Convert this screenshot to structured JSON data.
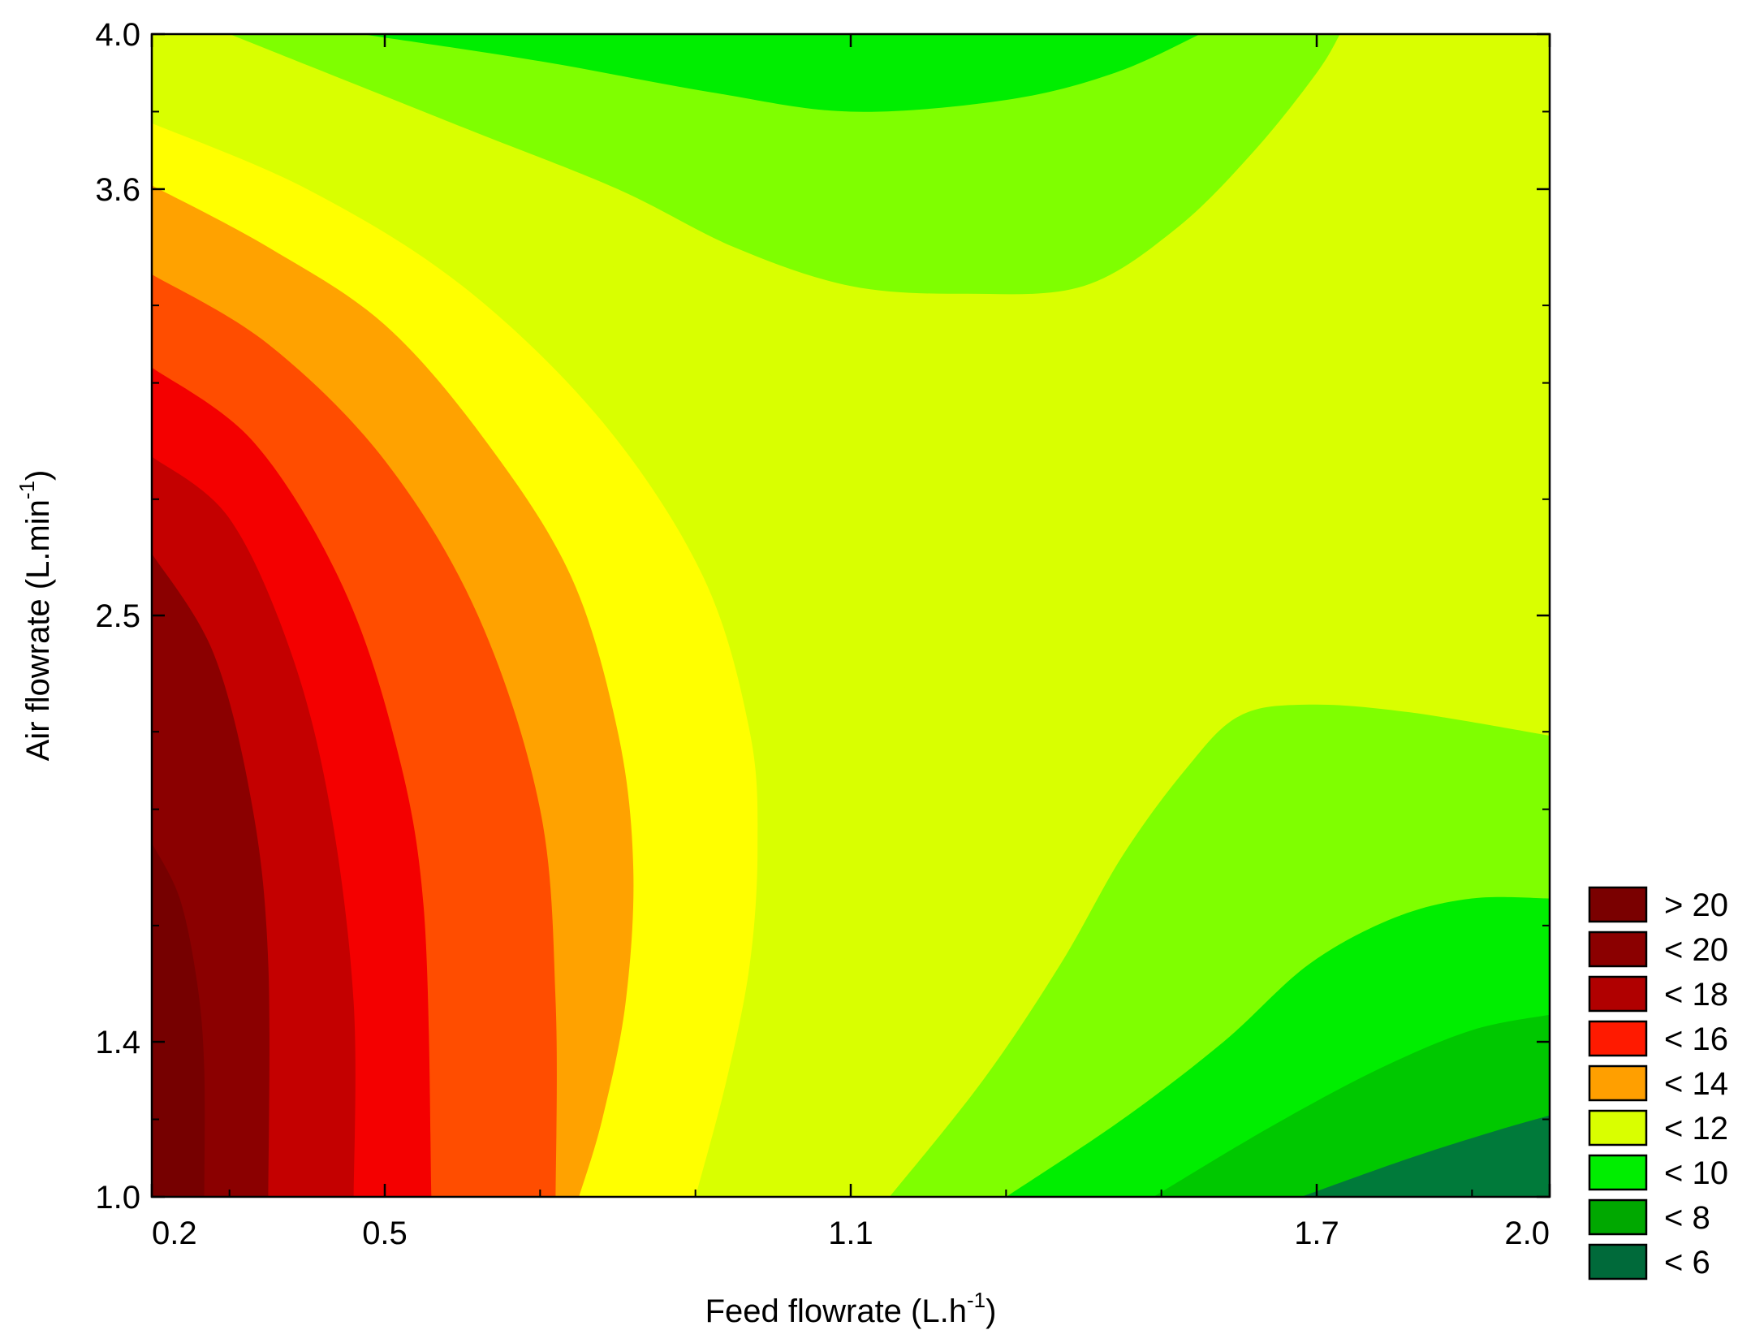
{
  "chart_data": {
    "type": "contour",
    "title": "",
    "xlabel": "Feed flowrate (L.h",
    "xlabel_sup": "-1",
    "xlabel_tail": ")",
    "ylabel": "Air flowrate (L.min",
    "ylabel_sup": "-1",
    "ylabel_tail": ")",
    "xlim": [
      0.2,
      2.0
    ],
    "ylim": [
      1.0,
      4.0
    ],
    "x_ticks": [
      0.2,
      0.5,
      1.1,
      1.7,
      2.0
    ],
    "x_tick_labels": [
      "0.2",
      "0.5",
      "1.1",
      "1.7",
      "2.0"
    ],
    "y_ticks": [
      1.0,
      1.4,
      2.5,
      3.6,
      4.0
    ],
    "y_tick_labels": [
      "1.0",
      "1.4",
      "2.5",
      "3.6",
      "4.0"
    ],
    "legend_position": "bottom-right",
    "levels": [
      {
        "label": "> 20",
        "color": "#7a0000"
      },
      {
        "label": "< 20",
        "color": "#8b0000"
      },
      {
        "label": "< 18",
        "color": "#b00000"
      },
      {
        "label": "< 16",
        "color": "#ff1a00"
      },
      {
        "label": "< 14",
        "color": "#ff9f00"
      },
      {
        "label": "< 12",
        "color": "#d9ff00"
      },
      {
        "label": "< 10",
        "color": "#00ee00"
      },
      {
        "label": "< 8",
        "color": "#00a800"
      },
      {
        "label": "< 6",
        "color": "#006a3a"
      }
    ],
    "region_colors": [
      "#760000",
      "#8b0000",
      "#c40000",
      "#f40000",
      "#ff4d00",
      "#ffa200",
      "#ffff00",
      "#d9ff00",
      "#7fff00",
      "#00ee00",
      "#00c800",
      "#00a400",
      "#007a3a"
    ],
    "contour_lines": [
      {
        "name": "c1",
        "points": [
          [
            0.2,
            2.66
          ],
          [
            0.28,
            2.4
          ],
          [
            0.33,
            2.0
          ],
          [
            0.35,
            1.6
          ],
          [
            0.35,
            1.0
          ]
        ]
      },
      {
        "name": "c2",
        "points": [
          [
            0.2,
            2.91
          ],
          [
            0.3,
            2.75
          ],
          [
            0.38,
            2.4
          ],
          [
            0.43,
            2.0
          ],
          [
            0.46,
            1.5
          ],
          [
            0.46,
            1.0
          ]
        ]
      },
      {
        "name": "c3",
        "points": [
          [
            0.2,
            3.14
          ],
          [
            0.33,
            2.95
          ],
          [
            0.44,
            2.6
          ],
          [
            0.51,
            2.2
          ],
          [
            0.55,
            1.75
          ],
          [
            0.56,
            1.0
          ]
        ]
      },
      {
        "name": "c4",
        "points": [
          [
            0.2,
            3.38
          ],
          [
            0.35,
            3.2
          ],
          [
            0.5,
            2.9
          ],
          [
            0.62,
            2.5
          ],
          [
            0.7,
            2.0
          ],
          [
            0.72,
            1.5
          ],
          [
            0.72,
            1.0
          ]
        ]
      },
      {
        "name": "c5",
        "points": [
          [
            0.2,
            3.61
          ],
          [
            0.35,
            3.45
          ],
          [
            0.5,
            3.25
          ],
          [
            0.63,
            2.95
          ],
          [
            0.74,
            2.6
          ],
          [
            0.8,
            2.2
          ],
          [
            0.82,
            1.85
          ],
          [
            0.81,
            1.5
          ],
          [
            0.78,
            1.2
          ],
          [
            0.75,
            1.0
          ]
        ]
      },
      {
        "name": "c6",
        "points": [
          [
            0.2,
            3.77
          ],
          [
            0.4,
            3.6
          ],
          [
            0.6,
            3.35
          ],
          [
            0.78,
            3.0
          ],
          [
            0.91,
            2.6
          ],
          [
            0.97,
            2.2
          ],
          [
            0.98,
            1.9
          ],
          [
            0.97,
            1.6
          ],
          [
            0.94,
            1.3
          ],
          [
            0.9,
            1.0
          ]
        ]
      },
      {
        "name": "c7",
        "points": [
          [
            0.2,
            3.94
          ],
          [
            0.35,
            3.85
          ],
          [
            0.55,
            3.65
          ],
          [
            0.75,
            3.45
          ],
          [
            0.95,
            3.2
          ],
          [
            1.07,
            2.95
          ],
          [
            1.14,
            2.6
          ],
          [
            1.17,
            2.35
          ],
          [
            1.14,
            2.0
          ],
          [
            1.09,
            1.6
          ],
          [
            1.05,
            1.3
          ],
          [
            1.04,
            1.0
          ]
        ]
      },
      {
        "name": "c8",
        "points": [
          [
            0.47,
            4.0
          ],
          [
            0.7,
            3.93
          ],
          [
            0.92,
            3.85
          ],
          [
            1.1,
            3.8
          ],
          [
            1.3,
            3.83
          ],
          [
            1.44,
            3.9
          ],
          [
            1.55,
            4.0
          ]
        ]
      },
      {
        "name": "c9",
        "points": [
          [
            0.3,
            4.0
          ],
          [
            0.6,
            3.76
          ],
          [
            0.8,
            3.6
          ],
          [
            0.95,
            3.45
          ],
          [
            1.1,
            3.35
          ],
          [
            1.25,
            3.33
          ],
          [
            1.4,
            3.35
          ],
          [
            1.52,
            3.5
          ],
          [
            1.62,
            3.7
          ],
          [
            1.7,
            3.9
          ],
          [
            1.73,
            4.0
          ]
        ]
      },
      {
        "name": "c10",
        "points": [
          [
            1.15,
            1.0
          ],
          [
            1.27,
            1.3
          ],
          [
            1.37,
            1.6
          ],
          [
            1.45,
            1.88
          ],
          [
            1.53,
            2.1
          ],
          [
            1.6,
            2.24
          ],
          [
            1.69,
            2.27
          ],
          [
            1.82,
            2.25
          ],
          [
            2.0,
            2.19
          ]
        ]
      },
      {
        "name": "c11",
        "points": [
          [
            1.3,
            1.0
          ],
          [
            1.45,
            1.2
          ],
          [
            1.58,
            1.4
          ],
          [
            1.69,
            1.6
          ],
          [
            1.8,
            1.72
          ],
          [
            1.9,
            1.77
          ],
          [
            2.0,
            1.77
          ]
        ]
      },
      {
        "name": "c12",
        "points": [
          [
            1.49,
            1.0
          ],
          [
            1.64,
            1.18
          ],
          [
            1.78,
            1.33
          ],
          [
            1.9,
            1.43
          ],
          [
            2.0,
            1.47
          ]
        ]
      },
      {
        "name": "c13",
        "points": [
          [
            1.68,
            1.0
          ],
          [
            1.82,
            1.1
          ],
          [
            1.93,
            1.17
          ],
          [
            2.0,
            1.21
          ]
        ]
      }
    ],
    "highlight_points": []
  }
}
